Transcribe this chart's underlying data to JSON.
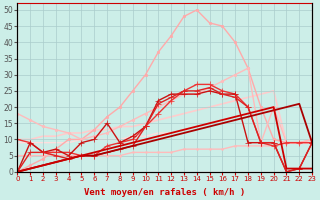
{
  "xlabel": "Vent moyen/en rafales ( km/h )",
  "background_color": "#cceee8",
  "grid_color": "#aacccc",
  "xlim": [
    0,
    23
  ],
  "ylim": [
    0,
    52
  ],
  "yticks": [
    0,
    5,
    10,
    15,
    20,
    25,
    30,
    35,
    40,
    45,
    50
  ],
  "xticks": [
    0,
    1,
    2,
    3,
    4,
    5,
    6,
    7,
    8,
    9,
    10,
    11,
    12,
    13,
    14,
    15,
    16,
    17,
    18,
    19,
    20,
    21,
    22,
    23
  ],
  "lines": [
    {
      "x": [
        0,
        1,
        2,
        3,
        4,
        5,
        6,
        7,
        8,
        9,
        10,
        11,
        12,
        13,
        14,
        15,
        16,
        17,
        18,
        19,
        20,
        21,
        22,
        23
      ],
      "y": [
        0,
        2,
        4,
        7,
        10,
        10,
        13,
        17,
        20,
        25,
        30,
        37,
        42,
        48,
        50,
        46,
        45,
        40,
        32,
        20,
        10,
        9,
        9,
        9
      ],
      "color": "#ffaaaa",
      "lw": 1.0,
      "marker": ".",
      "ms": 3.5,
      "zorder": 2
    },
    {
      "x": [
        0,
        1,
        2,
        3,
        4,
        5,
        6,
        7,
        8,
        9,
        10,
        11,
        12,
        13,
        14,
        15,
        16,
        17,
        18,
        19,
        20,
        21,
        22,
        23
      ],
      "y": [
        18,
        16,
        14,
        13,
        12,
        10,
        11,
        12,
        14,
        16,
        18,
        20,
        22,
        24,
        24,
        26,
        28,
        30,
        32,
        9,
        20,
        9,
        9,
        10
      ],
      "color": "#ffbbbb",
      "lw": 1.0,
      "marker": ".",
      "ms": 3.5,
      "zorder": 2
    },
    {
      "x": [
        0,
        1,
        2,
        3,
        4,
        5,
        6,
        7,
        8,
        9,
        10,
        11,
        12,
        13,
        14,
        15,
        16,
        17,
        18,
        19,
        20,
        21,
        22,
        23
      ],
      "y": [
        10,
        10,
        11,
        11,
        12,
        12,
        13,
        13,
        14,
        14,
        15,
        16,
        17,
        18,
        19,
        20,
        21,
        22,
        23,
        24,
        25,
        9,
        9,
        9
      ],
      "color": "#ffcccc",
      "lw": 1.2,
      "marker": null,
      "ms": 0,
      "zorder": 1
    },
    {
      "x": [
        0,
        1,
        2,
        3,
        4,
        5,
        6,
        7,
        8,
        9,
        10,
        11,
        12,
        13,
        14,
        15,
        16,
        17,
        18,
        19,
        20,
        21,
        22,
        23
      ],
      "y": [
        9,
        9,
        9,
        9,
        9,
        10,
        10,
        10,
        10,
        11,
        11,
        12,
        12,
        13,
        14,
        15,
        16,
        17,
        18,
        19,
        20,
        9,
        9,
        9
      ],
      "color": "#ffdddd",
      "lw": 1.0,
      "marker": null,
      "ms": 0,
      "zorder": 1
    },
    {
      "x": [
        0,
        1,
        2,
        3,
        4,
        5,
        6,
        7,
        8,
        9,
        10,
        11,
        12,
        13,
        14,
        15,
        16,
        17,
        18,
        19,
        20,
        21,
        22,
        23
      ],
      "y": [
        10,
        9,
        6,
        6,
        6,
        5,
        5,
        8,
        9,
        10,
        14,
        18,
        22,
        25,
        27,
        27,
        25,
        24,
        20,
        9,
        8,
        9,
        9,
        9
      ],
      "color": "#ee3333",
      "lw": 1.0,
      "marker": "+",
      "ms": 4,
      "zorder": 3
    },
    {
      "x": [
        0,
        1,
        2,
        3,
        4,
        5,
        6,
        7,
        8,
        9,
        10,
        11,
        12,
        13,
        14,
        15,
        16,
        17,
        18,
        19,
        20,
        21,
        22,
        23
      ],
      "y": [
        0,
        9,
        6,
        7,
        5,
        9,
        10,
        15,
        9,
        11,
        14,
        22,
        24,
        24,
        24,
        25,
        24,
        24,
        9,
        9,
        9,
        0,
        1,
        9
      ],
      "color": "#cc1111",
      "lw": 1.0,
      "marker": "+",
      "ms": 4,
      "zorder": 3
    },
    {
      "x": [
        0,
        1,
        2,
        3,
        4,
        5,
        6,
        7,
        8,
        9,
        10,
        11,
        12,
        13,
        14,
        15,
        16,
        17,
        18,
        19,
        20,
        21,
        22,
        23
      ],
      "y": [
        0,
        6,
        6,
        5,
        4,
        5,
        5,
        6,
        7,
        8,
        14,
        21,
        23,
        25,
        25,
        26,
        24,
        23,
        20,
        9,
        9,
        0,
        1,
        9
      ],
      "color": "#dd2222",
      "lw": 1.0,
      "marker": "+",
      "ms": 4,
      "zorder": 3
    },
    {
      "x": [
        0,
        1,
        2,
        3,
        4,
        5,
        6,
        7,
        8,
        9,
        10,
        11,
        12,
        13,
        14,
        15,
        16,
        17,
        18,
        19,
        20,
        21,
        22,
        23
      ],
      "y": [
        0,
        1,
        2,
        3,
        4,
        5,
        5,
        6,
        7,
        8,
        9,
        10,
        11,
        12,
        13,
        14,
        15,
        16,
        17,
        18,
        19,
        20,
        21,
        9
      ],
      "color": "#aa0000",
      "lw": 1.3,
      "marker": null,
      "ms": 0,
      "zorder": 4
    },
    {
      "x": [
        0,
        1,
        2,
        3,
        4,
        5,
        6,
        7,
        8,
        9,
        10,
        11,
        12,
        13,
        14,
        15,
        16,
        17,
        18,
        19,
        20,
        21,
        22,
        23
      ],
      "y": [
        0,
        1,
        2,
        3,
        4,
        5,
        6,
        7,
        8,
        9,
        10,
        11,
        12,
        13,
        14,
        15,
        16,
        17,
        18,
        19,
        20,
        1,
        1,
        1
      ],
      "color": "#cc0000",
      "lw": 1.3,
      "marker": null,
      "ms": 0,
      "zorder": 4
    },
    {
      "x": [
        0,
        1,
        2,
        3,
        4,
        5,
        6,
        7,
        8,
        9,
        10,
        11,
        12,
        13,
        14,
        15,
        16,
        17,
        18,
        19,
        20,
        21,
        22,
        23
      ],
      "y": [
        5,
        5,
        5,
        5,
        5,
        5,
        5,
        5,
        5,
        6,
        6,
        6,
        6,
        7,
        7,
        7,
        7,
        8,
        8,
        8,
        8,
        9,
        9,
        10
      ],
      "color": "#ffbbbb",
      "lw": 1.0,
      "marker": ".",
      "ms": 2.5,
      "zorder": 2
    }
  ]
}
